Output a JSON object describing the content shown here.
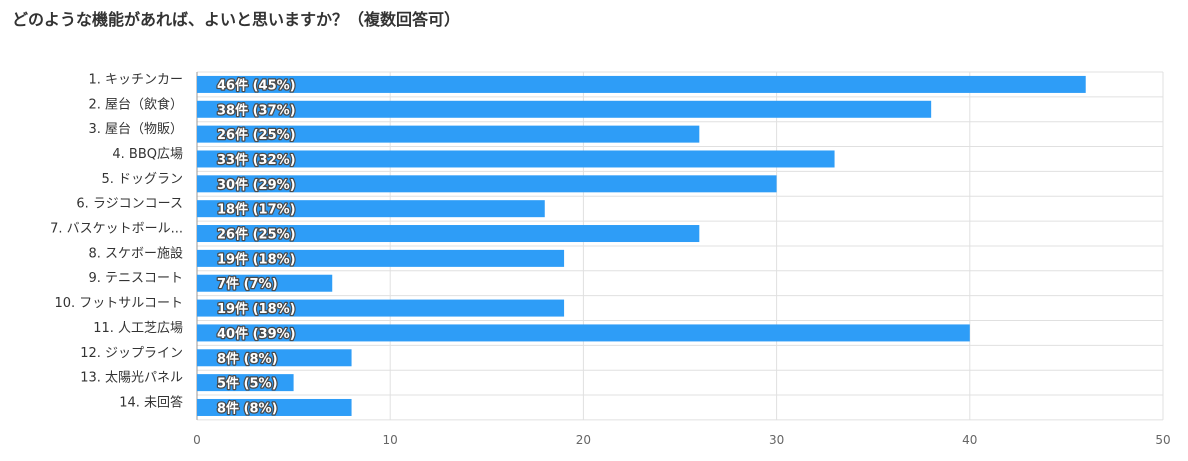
{
  "chart_data": {
    "type": "bar",
    "orientation": "horizontal",
    "title": "どのような機能があれば、よいと思いますか？（複数回答可）",
    "categories": [
      "1. キッチンカー",
      "2. 屋台（飲食）",
      "3. 屋台（物販）",
      "4. BBQ広場",
      "5. ドッグラン",
      "6. ラジコンコース",
      "7. バスケットボール...",
      "8. スケボー施設",
      "9. テニスコート",
      "10. フットサルコート",
      "11. 人工芝広場",
      "12. ジップライン",
      "13. 太陽光パネル",
      "14. 未回答"
    ],
    "values": [
      46,
      38,
      26,
      33,
      30,
      18,
      26,
      19,
      7,
      19,
      40,
      8,
      5,
      8
    ],
    "bar_labels": [
      "46件 (45%)",
      "38件 (37%)",
      "26件 (25%)",
      "33件 (32%)",
      "30件 (29%)",
      "18件 (17%)",
      "26件 (25%)",
      "19件 (18%)",
      "7件 (7%)",
      "19件 (18%)",
      "40件 (39%)",
      "8件 (8%)",
      "5件 (5%)",
      "8件 (8%)"
    ],
    "xlim": [
      0,
      50
    ],
    "xticks": [
      0,
      10,
      20,
      30,
      40,
      50
    ],
    "xlabel": "",
    "ylabel": "",
    "grid": true,
    "bar_color": "#2e9df7",
    "grid_color": "#e0e0e0"
  }
}
